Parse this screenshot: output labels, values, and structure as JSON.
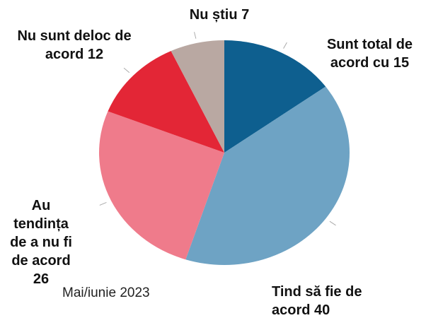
{
  "chart_data": {
    "type": "pie",
    "subtitle": "Mai/iunie 2023",
    "categories": [
      "Sunt total de acord cu",
      "Tind să fie de acord",
      "Au tendința de a nu fi de acord",
      "Nu sunt deloc de acord",
      "Nu știu"
    ],
    "values": [
      15,
      40,
      26,
      12,
      7
    ],
    "colors": [
      "#0e5f8f",
      "#6ea3c4",
      "#ef7b8b",
      "#e32636",
      "#b9a8a2"
    ]
  }
}
